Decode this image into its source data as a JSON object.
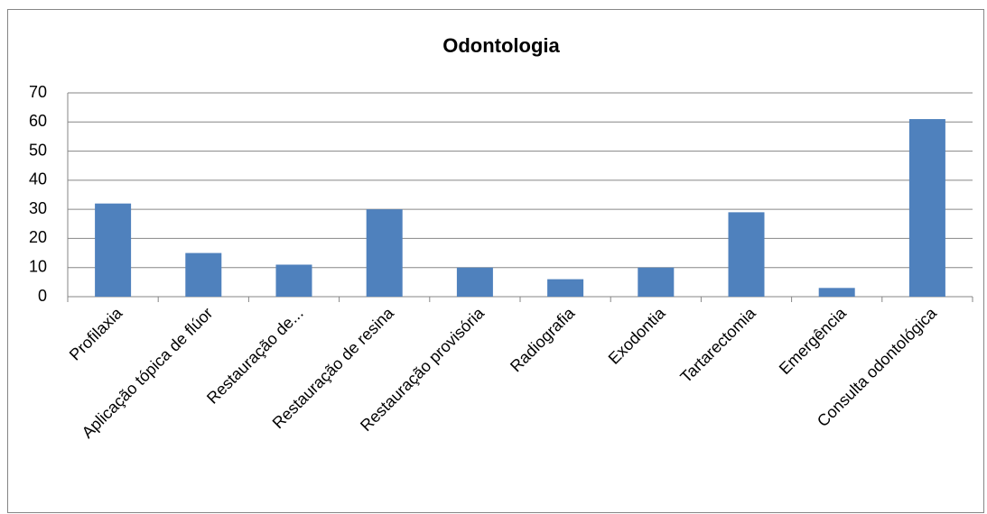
{
  "chart_data": {
    "type": "bar",
    "title": "Odontologia",
    "categories": [
      "Profilaxia",
      "Aplicação tópica de flúor",
      "Restauração de...",
      "Restauração de resina",
      "Restauração provisória",
      "Radiografia",
      "Exodontia",
      "Tartarectomia",
      "Emergência",
      "Consulta odontológica"
    ],
    "values": [
      32,
      15,
      11,
      30,
      10,
      6,
      10,
      29,
      3,
      61
    ],
    "color": "#4f81bd",
    "ylim": [
      0,
      70
    ],
    "yticks": [
      0,
      10,
      20,
      30,
      40,
      50,
      60,
      70
    ],
    "grid": true
  }
}
